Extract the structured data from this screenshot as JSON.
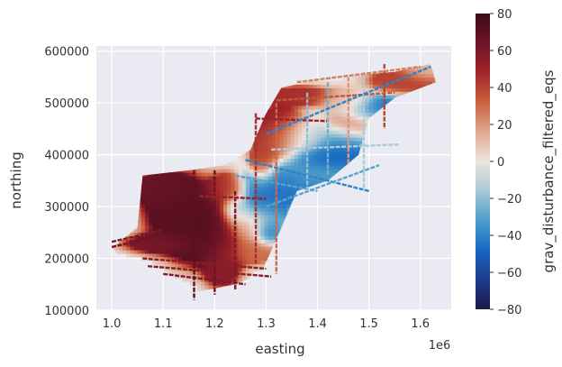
{
  "chart_data": {
    "type": "scatter",
    "xlabel": "easting",
    "ylabel": "northing",
    "x_multiplier": "1e6",
    "xlim": [
      0.97,
      1.66
    ],
    "ylim": [
      100000,
      610000
    ],
    "xticks": [
      1.0,
      1.1,
      1.2,
      1.3,
      1.4,
      1.5,
      1.6
    ],
    "xtick_labels": [
      "1.0",
      "1.1",
      "1.2",
      "1.3",
      "1.4",
      "1.5",
      "1.6"
    ],
    "yticks": [
      100000,
      200000,
      300000,
      400000,
      500000,
      600000
    ],
    "ytick_labels": [
      "100000",
      "200000",
      "300000",
      "400000",
      "500000",
      "600000"
    ],
    "grid": true,
    "colorbar": {
      "label": "grav_disturbance_filtered_eqs",
      "vmin": -80,
      "vmax": 80,
      "ticks": [
        -80,
        -60,
        -40,
        -20,
        0,
        20,
        40,
        60,
        80
      ],
      "tick_labels": [
        "−80",
        "−60",
        "−40",
        "−20",
        "0",
        "20",
        "40",
        "60",
        "80"
      ],
      "colormap": [
        "#1a1a47",
        "#1f3c8c",
        "#1668c2",
        "#4d9ccb",
        "#a9c8d6",
        "#ebe4df",
        "#dfa892",
        "#c9623e",
        "#a2242a",
        "#6e1527",
        "#3b0a17"
      ]
    },
    "background": "#eaeaf2",
    "blobs": [
      {
        "x": 1.13,
        "y": 290000,
        "rx": 0.055,
        "ry": 55000,
        "value": 70
      },
      {
        "x": 1.09,
        "y": 330000,
        "rx": 0.04,
        "ry": 25000,
        "value": 65
      },
      {
        "x": 1.17,
        "y": 240000,
        "rx": 0.05,
        "ry": 45000,
        "value": 72
      },
      {
        "x": 1.1,
        "y": 225000,
        "rx": 0.06,
        "ry": 15000,
        "value": 60
      },
      {
        "x": 1.22,
        "y": 330000,
        "rx": 0.03,
        "ry": 25000,
        "value": 45
      },
      {
        "x": 1.24,
        "y": 290000,
        "rx": 0.02,
        "ry": 20000,
        "value": -10
      },
      {
        "x": 1.29,
        "y": 300000,
        "rx": 0.04,
        "ry": 40000,
        "value": -45
      },
      {
        "x": 1.33,
        "y": 340000,
        "rx": 0.06,
        "ry": 25000,
        "value": -45
      },
      {
        "x": 1.38,
        "y": 360000,
        "rx": 0.06,
        "ry": 25000,
        "value": -30
      },
      {
        "x": 1.41,
        "y": 390000,
        "rx": 0.05,
        "ry": 20000,
        "value": -50
      },
      {
        "x": 1.46,
        "y": 420000,
        "rx": 0.05,
        "ry": 25000,
        "value": -45
      },
      {
        "x": 1.52,
        "y": 480000,
        "rx": 0.05,
        "ry": 25000,
        "value": -45
      },
      {
        "x": 1.36,
        "y": 430000,
        "rx": 0.05,
        "ry": 30000,
        "value": -10
      },
      {
        "x": 1.32,
        "y": 440000,
        "rx": 0.04,
        "ry": 40000,
        "value": 55
      },
      {
        "x": 1.36,
        "y": 510000,
        "rx": 0.05,
        "ry": 15000,
        "value": 45
      },
      {
        "x": 1.45,
        "y": 500000,
        "rx": 0.04,
        "ry": 20000,
        "value": 10
      },
      {
        "x": 1.48,
        "y": 450000,
        "rx": 0.05,
        "ry": 25000,
        "value": 30
      },
      {
        "x": 1.56,
        "y": 540000,
        "rx": 0.05,
        "ry": 20000,
        "value": 40
      },
      {
        "x": 1.6,
        "y": 560000,
        "rx": 0.03,
        "ry": 15000,
        "value": 10
      },
      {
        "x": 1.27,
        "y": 210000,
        "rx": 0.04,
        "ry": 20000,
        "value": 30
      },
      {
        "x": 1.27,
        "y": 260000,
        "rx": 0.04,
        "ry": 30000,
        "value": 20
      },
      {
        "x": 1.21,
        "y": 190000,
        "rx": 0.03,
        "ry": 40000,
        "value": 55
      },
      {
        "x": 1.29,
        "y": 380000,
        "rx": 0.02,
        "ry": 30000,
        "value": 40
      },
      {
        "x": 1.3,
        "y": 250000,
        "rx": 0.02,
        "ry": 20000,
        "value": -55
      }
    ],
    "region": [
      [
        1.06,
        360000
      ],
      [
        1.15,
        370000
      ],
      [
        1.22,
        380000
      ],
      [
        1.27,
        410000
      ],
      [
        1.3,
        480000
      ],
      [
        1.33,
        530000
      ],
      [
        1.43,
        550000
      ],
      [
        1.55,
        560000
      ],
      [
        1.62,
        575000
      ],
      [
        1.63,
        540000
      ],
      [
        1.55,
        510000
      ],
      [
        1.5,
        470000
      ],
      [
        1.48,
        400000
      ],
      [
        1.42,
        350000
      ],
      [
        1.36,
        330000
      ],
      [
        1.33,
        260000
      ],
      [
        1.29,
        170000
      ],
      [
        1.24,
        150000
      ],
      [
        1.14,
        130000
      ],
      [
        1.06,
        160000
      ],
      [
        1.0,
        220000
      ],
      [
        1.05,
        260000
      ],
      [
        1.06,
        360000
      ]
    ],
    "lines": [
      {
        "x1": 1.0,
        "y1": 222000,
        "x2": 1.1,
        "y2": 245000,
        "value": 65
      },
      {
        "x1": 1.0,
        "y1": 232000,
        "x2": 1.1,
        "y2": 255000,
        "value": 60
      },
      {
        "x1": 1.06,
        "y1": 200000,
        "x2": 1.3,
        "y2": 180000,
        "value": 55
      },
      {
        "x1": 1.07,
        "y1": 185000,
        "x2": 1.31,
        "y2": 165000,
        "value": 55
      },
      {
        "x1": 1.1,
        "y1": 170000,
        "x2": 1.26,
        "y2": 150000,
        "value": 60
      },
      {
        "x1": 1.16,
        "y1": 370000,
        "x2": 1.16,
        "y2": 120000,
        "value": 70
      },
      {
        "x1": 1.2,
        "y1": 370000,
        "x2": 1.2,
        "y2": 130000,
        "value": 65
      },
      {
        "x1": 1.24,
        "y1": 330000,
        "x2": 1.24,
        "y2": 140000,
        "value": 60
      },
      {
        "x1": 1.28,
        "y1": 480000,
        "x2": 1.28,
        "y2": 190000,
        "value": 45
      },
      {
        "x1": 1.32,
        "y1": 500000,
        "x2": 1.32,
        "y2": 170000,
        "value": 30
      },
      {
        "x1": 1.17,
        "y1": 320000,
        "x2": 1.3,
        "y2": 315000,
        "value": 50
      },
      {
        "x1": 1.24,
        "y1": 360000,
        "x2": 1.4,
        "y2": 330000,
        "value": -30
      },
      {
        "x1": 1.26,
        "y1": 390000,
        "x2": 1.5,
        "y2": 330000,
        "value": -40
      },
      {
        "x1": 1.3,
        "y1": 300000,
        "x2": 1.52,
        "y2": 380000,
        "value": -30
      },
      {
        "x1": 1.31,
        "y1": 410000,
        "x2": 1.56,
        "y2": 420000,
        "value": -15
      },
      {
        "x1": 1.28,
        "y1": 470000,
        "x2": 1.42,
        "y2": 465000,
        "value": 50
      },
      {
        "x1": 1.38,
        "y1": 520000,
        "x2": 1.38,
        "y2": 330000,
        "value": -20
      },
      {
        "x1": 1.42,
        "y1": 540000,
        "x2": 1.42,
        "y2": 360000,
        "value": -25
      },
      {
        "x1": 1.46,
        "y1": 550000,
        "x2": 1.46,
        "y2": 380000,
        "value": 20
      },
      {
        "x1": 1.49,
        "y1": 560000,
        "x2": 1.49,
        "y2": 330000,
        "value": -15
      },
      {
        "x1": 1.53,
        "y1": 575000,
        "x2": 1.53,
        "y2": 450000,
        "value": 40
      },
      {
        "x1": 1.36,
        "y1": 540000,
        "x2": 1.6,
        "y2": 570000,
        "value": 25
      },
      {
        "x1": 1.32,
        "y1": 505000,
        "x2": 1.55,
        "y2": 520000,
        "value": 35
      },
      {
        "x1": 1.3,
        "y1": 440000,
        "x2": 1.62,
        "y2": 570000,
        "value": -40
      }
    ]
  }
}
